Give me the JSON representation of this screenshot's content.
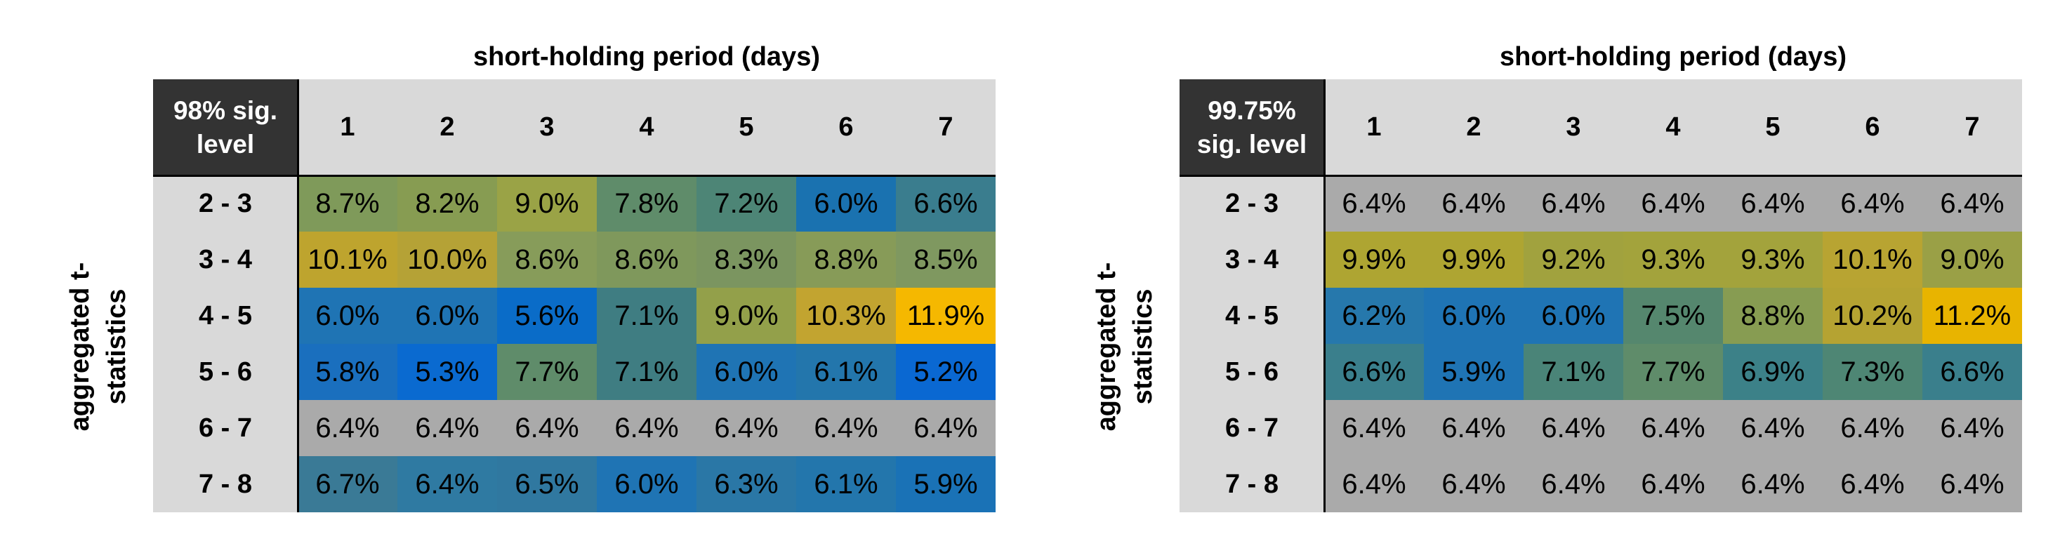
{
  "chart_data": [
    {
      "type": "heatmap",
      "title": "short-holding period (days)",
      "corner_label": "98% sig. level",
      "ylabel": "aggregated t-statistics",
      "columns": [
        "1",
        "2",
        "3",
        "4",
        "5",
        "6",
        "7"
      ],
      "rows": [
        "2 - 3",
        "3 - 4",
        "4 - 5",
        "5 - 6",
        "6 - 7",
        "7 - 8"
      ],
      "values": [
        [
          "8.7%",
          "8.2%",
          "9.0%",
          "7.8%",
          "7.2%",
          "6.0%",
          "6.6%"
        ],
        [
          "10.1%",
          "10.0%",
          "8.6%",
          "8.6%",
          "8.3%",
          "8.8%",
          "8.5%"
        ],
        [
          "6.0%",
          "6.0%",
          "5.6%",
          "7.1%",
          "9.0%",
          "10.3%",
          "11.9%"
        ],
        [
          "5.8%",
          "5.3%",
          "7.7%",
          "7.1%",
          "6.0%",
          "6.1%",
          "5.2%"
        ],
        [
          "6.4%",
          "6.4%",
          "6.4%",
          "6.4%",
          "6.4%",
          "6.4%",
          "6.4%"
        ],
        [
          "6.7%",
          "6.4%",
          "6.5%",
          "6.0%",
          "6.3%",
          "6.1%",
          "5.9%"
        ]
      ],
      "colors": [
        [
          "#7f9a5a",
          "#879c52",
          "#9aa346",
          "#5f8c6a",
          "#4d8576",
          "#1a72b0",
          "#3a7d8e"
        ],
        [
          "#bea42e",
          "#b5a236",
          "#879c5a",
          "#7f985c",
          "#7b9560",
          "#879b58",
          "#7f9860"
        ],
        [
          "#1f74b4",
          "#1f74b4",
          "#0a6cc8",
          "#3f7d82",
          "#93a04a",
          "#c2a430",
          "#f5b800"
        ],
        [
          "#1a6fbe",
          "#0a6ad0",
          "#5f8c6a",
          "#3f7d82",
          "#1f74b4",
          "#2376ac",
          "#0a68d2"
        ],
        [
          "#aaaaaa",
          "#aaaaaa",
          "#aaaaaa",
          "#aaaaaa",
          "#aaaaaa",
          "#aaaaaa",
          "#aaaaaa"
        ],
        [
          "#3a7a96",
          "#2f7aa2",
          "#3078a0",
          "#1f74b4",
          "#2a77a6",
          "#2376ac",
          "#1a72b6"
        ]
      ]
    },
    {
      "type": "heatmap",
      "title": "short-holding period (days)",
      "corner_label": "99.75% sig. level",
      "ylabel": "aggregated t-statistics",
      "columns": [
        "1",
        "2",
        "3",
        "4",
        "5",
        "6",
        "7"
      ],
      "rows": [
        "2 - 3",
        "3 - 4",
        "4 - 5",
        "5 - 6",
        "6 - 7",
        "7 - 8"
      ],
      "values": [
        [
          "6.4%",
          "6.4%",
          "6.4%",
          "6.4%",
          "6.4%",
          "6.4%",
          "6.4%"
        ],
        [
          "9.9%",
          "9.9%",
          "9.2%",
          "9.3%",
          "9.3%",
          "10.1%",
          "9.0%"
        ],
        [
          "6.2%",
          "6.0%",
          "6.0%",
          "7.5%",
          "8.8%",
          "10.2%",
          "11.2%"
        ],
        [
          "6.6%",
          "5.9%",
          "7.1%",
          "7.7%",
          "6.9%",
          "7.3%",
          "6.6%"
        ],
        [
          "6.4%",
          "6.4%",
          "6.4%",
          "6.4%",
          "6.4%",
          "6.4%",
          "6.4%"
        ],
        [
          "6.4%",
          "6.4%",
          "6.4%",
          "6.4%",
          "6.4%",
          "6.4%",
          "6.4%"
        ]
      ],
      "colors": [
        [
          "#aaaaaa",
          "#aaaaaa",
          "#aaaaaa",
          "#aaaaaa",
          "#aaaaaa",
          "#aaaaaa",
          "#aaaaaa"
        ],
        [
          "#aea532",
          "#aea532",
          "#a1a23e",
          "#a3a33c",
          "#a3a33c",
          "#b8a432",
          "#9aa046"
        ],
        [
          "#2678ac",
          "#1f74b4",
          "#1f74b4",
          "#55876e",
          "#879c52",
          "#b5a332",
          "#e8b400"
        ],
        [
          "#3a7f8c",
          "#1f74b4",
          "#4a8478",
          "#5f8c6a",
          "#3c8188",
          "#4e8674",
          "#3a7f8c"
        ],
        [
          "#aaaaaa",
          "#aaaaaa",
          "#aaaaaa",
          "#aaaaaa",
          "#aaaaaa",
          "#aaaaaa",
          "#aaaaaa"
        ],
        [
          "#aaaaaa",
          "#aaaaaa",
          "#aaaaaa",
          "#aaaaaa",
          "#aaaaaa",
          "#aaaaaa",
          "#aaaaaa"
        ]
      ]
    }
  ]
}
